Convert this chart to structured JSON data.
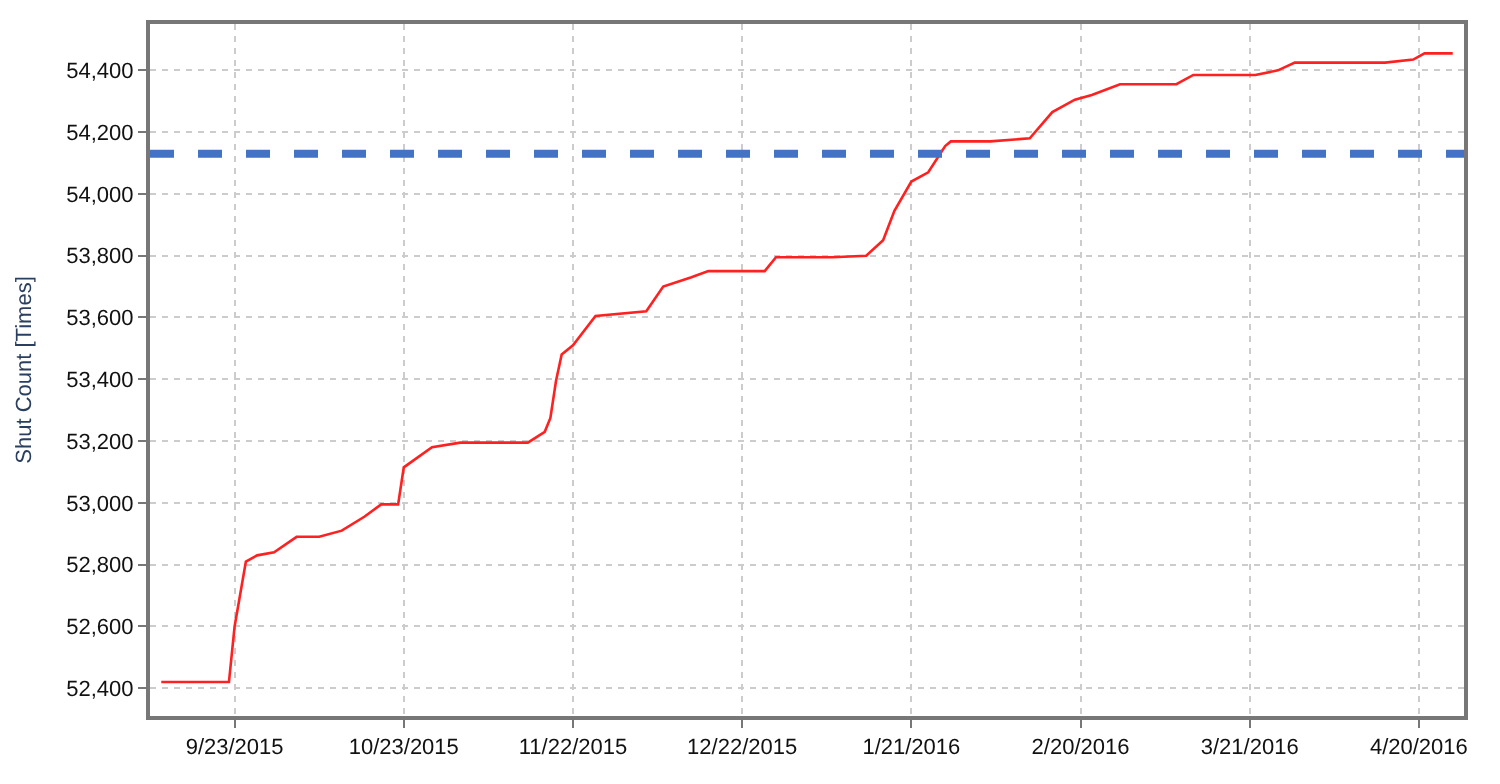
{
  "chart_data": {
    "type": "line",
    "ylabel": "Shut Count [Times]",
    "x": [
      "2015-09-10",
      "2015-09-22",
      "2015-09-23",
      "2015-09-25",
      "2015-09-27",
      "2015-09-30",
      "2015-10-04",
      "2015-10-08",
      "2015-10-12",
      "2015-10-16",
      "2015-10-19",
      "2015-10-22",
      "2015-10-23",
      "2015-10-28",
      "2015-11-02",
      "2015-11-14",
      "2015-11-17",
      "2015-11-18",
      "2015-11-19",
      "2015-11-20",
      "2015-11-22",
      "2015-11-26",
      "2015-12-05",
      "2015-12-08",
      "2015-12-13",
      "2015-12-16",
      "2015-12-26",
      "2015-12-28",
      "2016-01-07",
      "2016-01-13",
      "2016-01-16",
      "2016-01-18",
      "2016-01-21",
      "2016-01-24",
      "2016-01-27",
      "2016-01-28",
      "2016-02-04",
      "2016-02-11",
      "2016-02-15",
      "2016-02-19",
      "2016-02-22",
      "2016-02-27",
      "2016-03-08",
      "2016-03-11",
      "2016-03-22",
      "2016-03-26",
      "2016-03-29",
      "2016-04-14",
      "2016-04-19",
      "2016-04-21",
      "2016-04-26"
    ],
    "series": [
      {
        "color": "#ff2020",
        "values": [
          52420,
          52420,
          52600,
          52810,
          52830,
          52840,
          52890,
          52890,
          52910,
          52955,
          52995,
          52995,
          53115,
          53180,
          53195,
          53195,
          53230,
          53275,
          53395,
          53480,
          53510,
          53605,
          53620,
          53700,
          53730,
          53750,
          53750,
          53795,
          53795,
          53800,
          53850,
          53945,
          54040,
          54070,
          54155,
          54170,
          54170,
          54180,
          54265,
          54305,
          54320,
          54355,
          54355,
          54385,
          54385,
          54400,
          54425,
          54425,
          54435,
          54455,
          54455
        ]
      }
    ],
    "xlim": [
      "2015-09-08",
      "2016-04-28"
    ],
    "xticks": [
      {
        "value": "2015-09-23",
        "label": "9/23/2015"
      },
      {
        "value": "2015-10-23",
        "label": "10/23/2015"
      },
      {
        "value": "2015-11-22",
        "label": "11/22/2015"
      },
      {
        "value": "2015-12-22",
        "label": "12/22/2015"
      },
      {
        "value": "2016-01-21",
        "label": "1/21/2016"
      },
      {
        "value": "2016-02-20",
        "label": "2/20/2016"
      },
      {
        "value": "2016-03-21",
        "label": "3/21/2016"
      },
      {
        "value": "2016-04-20",
        "label": "4/20/2016"
      }
    ],
    "ylim": [
      52310,
      54550
    ],
    "yticks": [
      {
        "value": 52400,
        "label": "52,400"
      },
      {
        "value": 52600,
        "label": "52,600"
      },
      {
        "value": 52800,
        "label": "52,800"
      },
      {
        "value": 53000,
        "label": "53,000"
      },
      {
        "value": 53200,
        "label": "53,200"
      },
      {
        "value": 53400,
        "label": "53,400"
      },
      {
        "value": 53600,
        "label": "53,600"
      },
      {
        "value": 53800,
        "label": "53,800"
      },
      {
        "value": 54000,
        "label": "54,000"
      },
      {
        "value": 54200,
        "label": "54,200"
      },
      {
        "value": 54400,
        "label": "54,400"
      }
    ],
    "ref_lines": [
      {
        "axis": "y",
        "value": 54130,
        "label": null,
        "color": "#4472c4",
        "line_style": "dashed"
      }
    ],
    "grid": true,
    "marker": "none",
    "line_style": "solid"
  }
}
